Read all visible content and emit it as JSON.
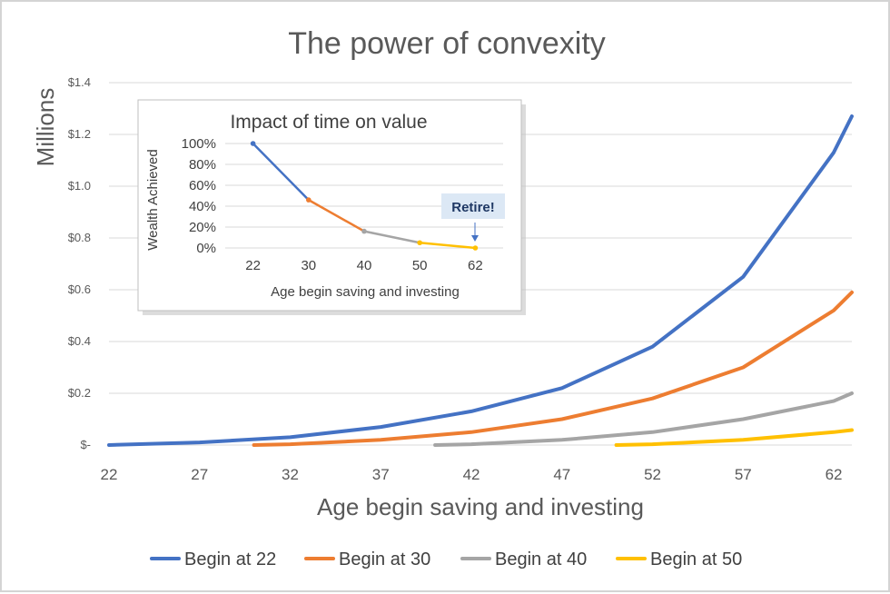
{
  "chart_data": [
    {
      "type": "line",
      "title": "The power of convexity",
      "xlabel": "Age begin saving and investing",
      "ylabel": "Millions",
      "xlim": [
        22,
        63
      ],
      "ylim": [
        0,
        1.4
      ],
      "x_ticks": [
        "22",
        "27",
        "32",
        "37",
        "42",
        "47",
        "52",
        "57",
        "62"
      ],
      "y_ticks": [
        "$-",
        "$0.2",
        "$0.4",
        "$0.6",
        "$0.8",
        "$1.0",
        "$1.2",
        "$1.4"
      ],
      "grid": true,
      "legend_position": "bottom",
      "series": [
        {
          "name": "Begin at 22",
          "color": "#4472c4",
          "x": [
            22,
            27,
            32,
            37,
            42,
            47,
            52,
            57,
            62,
            63
          ],
          "y": [
            0,
            0.01,
            0.03,
            0.07,
            0.13,
            0.22,
            0.38,
            0.65,
            1.13,
            1.27
          ]
        },
        {
          "name": "Begin at 30",
          "color": "#ed7d31",
          "x": [
            30,
            32,
            37,
            42,
            47,
            52,
            57,
            62,
            63
          ],
          "y": [
            0,
            0.003,
            0.02,
            0.05,
            0.1,
            0.18,
            0.3,
            0.52,
            0.59
          ]
        },
        {
          "name": "Begin at 40",
          "color": "#a5a5a5",
          "x": [
            40,
            42,
            47,
            52,
            57,
            62,
            63
          ],
          "y": [
            0,
            0.003,
            0.02,
            0.05,
            0.1,
            0.17,
            0.2
          ]
        },
        {
          "name": "Begin at 50",
          "color": "#ffc000",
          "x": [
            50,
            52,
            57,
            62,
            63
          ],
          "y": [
            0,
            0.003,
            0.02,
            0.05,
            0.058
          ]
        }
      ]
    },
    {
      "type": "line",
      "title": "Impact of time on value",
      "xlabel": "Age begin saving and investing",
      "ylabel": "Wealth Achieved",
      "categories": [
        "22",
        "30",
        "40",
        "50",
        "62"
      ],
      "y_ticks": [
        "100%",
        "80%",
        "60%",
        "40%",
        "20%",
        "0%"
      ],
      "ylim": [
        0,
        100
      ],
      "values": [
        100,
        46,
        16,
        5,
        0
      ],
      "segment_colors": [
        "#4472c4",
        "#ed7d31",
        "#a5a5a5",
        "#ffc000"
      ],
      "annotation": "Retire!"
    }
  ]
}
